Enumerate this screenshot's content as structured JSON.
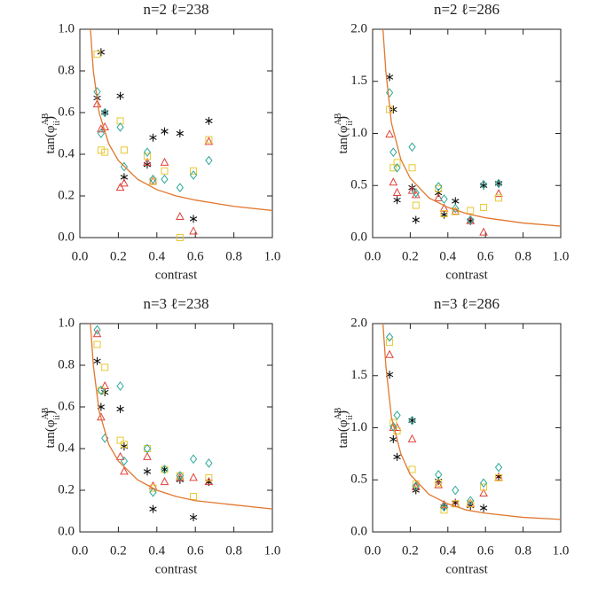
{
  "chart_data": [
    {
      "type": "scatter",
      "title": "n=2 ℓ=238",
      "xlabel": "contrast",
      "ylabel": {
        "base": "tan(φ",
        "sup": "AB",
        "sub": "ii",
        "close": ")"
      },
      "xlim": [
        0,
        1
      ],
      "ylim": [
        0,
        1
      ],
      "xticks": [
        {
          "value": 0,
          "label": "0.0"
        },
        {
          "value": 0.2,
          "label": "0.2"
        },
        {
          "value": 0.4,
          "label": "0.4"
        },
        {
          "value": 0.6,
          "label": "0.6"
        },
        {
          "value": 0.8,
          "label": "0.8"
        },
        {
          "value": 1,
          "label": "1.0"
        }
      ],
      "yticks": [
        {
          "value": 0,
          "label": "0.0"
        },
        {
          "value": 0.2,
          "label": "0.2"
        },
        {
          "value": 0.4,
          "label": "0.4"
        },
        {
          "value": 0.6,
          "label": "0.6"
        },
        {
          "value": 0.8,
          "label": "0.8"
        },
        {
          "value": 1,
          "label": "1.0"
        }
      ],
      "x": [
        0.09,
        0.11,
        0.13,
        0.21,
        0.23,
        0.35,
        0.38,
        0.44,
        0.52,
        0.59,
        0.67
      ],
      "series": [
        {
          "marker": "asterisk",
          "color": "#111111",
          "values": [
            0.67,
            0.89,
            0.6,
            0.68,
            0.29,
            0.35,
            0.48,
            0.51,
            0.5,
            0.09,
            0.56
          ]
        },
        {
          "marker": "triangle",
          "color": "#e0403a",
          "values": [
            0.64,
            0.52,
            0.53,
            0.24,
            0.26,
            0.36,
            0.27,
            0.36,
            0.1,
            0.03,
            0.46
          ]
        },
        {
          "marker": "square",
          "color": "#e8c832",
          "values": [
            0.88,
            0.42,
            0.41,
            0.56,
            0.42,
            0.39,
            0.27,
            0.32,
            0.0,
            0.32,
            0.47
          ]
        },
        {
          "marker": "diamond",
          "color": "#2aa89a",
          "values": [
            0.7,
            0.5,
            0.6,
            0.53,
            0.34,
            0.41,
            0.28,
            0.28,
            0.24,
            0.3,
            0.37
          ]
        },
        {
          "type": "line",
          "color": "#e07830",
          "x": [
            0.055,
            0.07,
            0.1,
            0.15,
            0.2,
            0.3,
            0.4,
            0.5,
            0.6,
            0.8,
            1.0
          ],
          "values": [
            1.0,
            0.8,
            0.6,
            0.45,
            0.37,
            0.28,
            0.23,
            0.2,
            0.18,
            0.15,
            0.13
          ]
        }
      ]
    },
    {
      "type": "scatter",
      "title": "n=2 ℓ=286",
      "xlabel": "contrast",
      "ylabel": {
        "base": "tan(φ",
        "sup": "AB",
        "sub": "ii",
        "close": ")"
      },
      "xlim": [
        0,
        1
      ],
      "ylim": [
        0,
        2
      ],
      "xticks": [
        {
          "value": 0,
          "label": "0.0"
        },
        {
          "value": 0.2,
          "label": "0.2"
        },
        {
          "value": 0.4,
          "label": "0.4"
        },
        {
          "value": 0.6,
          "label": "0.6"
        },
        {
          "value": 0.8,
          "label": "0.8"
        },
        {
          "value": 1,
          "label": "1.0"
        }
      ],
      "yticks": [
        {
          "value": 0,
          "label": "0.0"
        },
        {
          "value": 0.5,
          "label": "0.5"
        },
        {
          "value": 1,
          "label": "1.0"
        },
        {
          "value": 1.5,
          "label": "1.5"
        },
        {
          "value": 2,
          "label": "2.0"
        }
      ],
      "x": [
        0.09,
        0.11,
        0.13,
        0.21,
        0.23,
        0.35,
        0.38,
        0.44,
        0.52,
        0.59,
        0.67
      ],
      "series": [
        {
          "marker": "asterisk",
          "color": "#111111",
          "values": [
            1.54,
            1.23,
            0.36,
            0.48,
            0.17,
            0.43,
            0.22,
            0.35,
            0.16,
            0.5,
            0.52
          ]
        },
        {
          "marker": "triangle",
          "color": "#e0403a",
          "values": [
            0.99,
            0.53,
            0.43,
            0.45,
            0.41,
            0.38,
            0.28,
            0.25,
            0.16,
            0.05,
            0.42
          ]
        },
        {
          "marker": "square",
          "color": "#e8c832",
          "values": [
            1.23,
            0.67,
            0.72,
            0.67,
            0.31,
            0.47,
            0.23,
            0.25,
            0.26,
            0.29,
            0.38
          ]
        },
        {
          "marker": "diamond",
          "color": "#2aa89a",
          "values": [
            1.39,
            0.82,
            0.67,
            0.87,
            0.43,
            0.49,
            0.37,
            0.28,
            0.17,
            0.51,
            0.52
          ]
        },
        {
          "type": "line",
          "color": "#e07830",
          "x": [
            0.055,
            0.07,
            0.1,
            0.15,
            0.2,
            0.3,
            0.4,
            0.5,
            0.6,
            0.8,
            1.0
          ],
          "values": [
            2.0,
            1.6,
            1.1,
            0.75,
            0.57,
            0.38,
            0.29,
            0.23,
            0.19,
            0.14,
            0.11
          ]
        }
      ]
    },
    {
      "type": "scatter",
      "title": "n=3 ℓ=238",
      "xlabel": "contrast",
      "ylabel": {
        "base": "tan(φ",
        "sup": "AB",
        "sub": "ii",
        "close": ")"
      },
      "xlim": [
        0,
        1
      ],
      "ylim": [
        0,
        1
      ],
      "xticks": [
        {
          "value": 0,
          "label": "0.0"
        },
        {
          "value": 0.2,
          "label": "0.2"
        },
        {
          "value": 0.4,
          "label": "0.4"
        },
        {
          "value": 0.6,
          "label": "0.6"
        },
        {
          "value": 0.8,
          "label": "0.8"
        },
        {
          "value": 1,
          "label": "1.0"
        }
      ],
      "yticks": [
        {
          "value": 0,
          "label": "0.0"
        },
        {
          "value": 0.2,
          "label": "0.2"
        },
        {
          "value": 0.4,
          "label": "0.4"
        },
        {
          "value": 0.6,
          "label": "0.6"
        },
        {
          "value": 0.8,
          "label": "0.8"
        },
        {
          "value": 1,
          "label": "1.0"
        }
      ],
      "x": [
        0.09,
        0.11,
        0.13,
        0.21,
        0.23,
        0.35,
        0.38,
        0.44,
        0.52,
        0.59,
        0.67
      ],
      "series": [
        {
          "marker": "asterisk",
          "color": "#111111",
          "values": [
            0.82,
            0.6,
            0.67,
            0.59,
            0.41,
            0.29,
            0.11,
            0.3,
            0.25,
            0.07,
            0.24
          ]
        },
        {
          "marker": "triangle",
          "color": "#e0403a",
          "values": [
            0.95,
            0.55,
            0.7,
            0.36,
            0.29,
            0.36,
            0.22,
            0.24,
            0.26,
            0.26,
            0.24
          ]
        },
        {
          "marker": "square",
          "color": "#e8c832",
          "values": [
            0.9,
            0.68,
            0.79,
            0.44,
            0.42,
            0.4,
            0.21,
            0.3,
            0.27,
            0.17,
            0.26
          ]
        },
        {
          "marker": "diamond",
          "color": "#2aa89a",
          "values": [
            0.97,
            0.68,
            0.45,
            0.7,
            0.34,
            0.4,
            0.19,
            0.3,
            0.27,
            0.35,
            0.33
          ]
        },
        {
          "type": "line",
          "color": "#e07830",
          "x": [
            0.055,
            0.07,
            0.1,
            0.15,
            0.2,
            0.3,
            0.4,
            0.5,
            0.6,
            0.8,
            1.0
          ],
          "values": [
            1.0,
            0.8,
            0.58,
            0.42,
            0.34,
            0.25,
            0.2,
            0.17,
            0.15,
            0.13,
            0.11
          ]
        }
      ]
    },
    {
      "type": "scatter",
      "title": "n=3 ℓ=286",
      "xlabel": "contrast",
      "ylabel": {
        "base": "tan(φ",
        "sup": "AB",
        "sub": "ii",
        "close": ")"
      },
      "xlim": [
        0,
        1
      ],
      "ylim": [
        0,
        2
      ],
      "xticks": [
        {
          "value": 0,
          "label": "0.0"
        },
        {
          "value": 0.2,
          "label": "0.2"
        },
        {
          "value": 0.4,
          "label": "0.4"
        },
        {
          "value": 0.6,
          "label": "0.6"
        },
        {
          "value": 0.8,
          "label": "0.8"
        },
        {
          "value": 1,
          "label": "1.0"
        }
      ],
      "yticks": [
        {
          "value": 0,
          "label": "0.0"
        },
        {
          "value": 0.5,
          "label": "0.5"
        },
        {
          "value": 1,
          "label": "1.0"
        },
        {
          "value": 1.5,
          "label": "1.5"
        },
        {
          "value": 2,
          "label": "2.0"
        }
      ],
      "x": [
        0.09,
        0.11,
        0.13,
        0.21,
        0.23,
        0.35,
        0.38,
        0.44,
        0.52,
        0.59,
        0.67
      ],
      "series": [
        {
          "marker": "asterisk",
          "color": "#111111",
          "values": [
            1.51,
            0.89,
            0.72,
            1.07,
            0.4,
            0.49,
            0.24,
            0.28,
            0.25,
            0.23,
            0.53
          ]
        },
        {
          "marker": "triangle",
          "color": "#e0403a",
          "values": [
            1.7,
            1.0,
            1.0,
            0.89,
            0.43,
            0.45,
            0.26,
            0.27,
            0.27,
            0.37,
            0.52
          ]
        },
        {
          "marker": "square",
          "color": "#e8c832",
          "values": [
            1.82,
            1.05,
            0.97,
            0.6,
            0.46,
            0.47,
            0.21,
            0.27,
            0.27,
            0.43,
            0.52
          ]
        },
        {
          "marker": "diamond",
          "color": "#2aa89a",
          "values": [
            1.87,
            1.01,
            1.12,
            1.07,
            0.44,
            0.55,
            0.24,
            0.4,
            0.3,
            0.47,
            0.62
          ]
        },
        {
          "type": "line",
          "color": "#e07830",
          "x": [
            0.055,
            0.07,
            0.1,
            0.15,
            0.2,
            0.3,
            0.4,
            0.5,
            0.6,
            0.8,
            1.0
          ],
          "values": [
            2.0,
            1.6,
            1.1,
            0.75,
            0.55,
            0.36,
            0.27,
            0.21,
            0.18,
            0.14,
            0.12
          ]
        }
      ]
    }
  ]
}
